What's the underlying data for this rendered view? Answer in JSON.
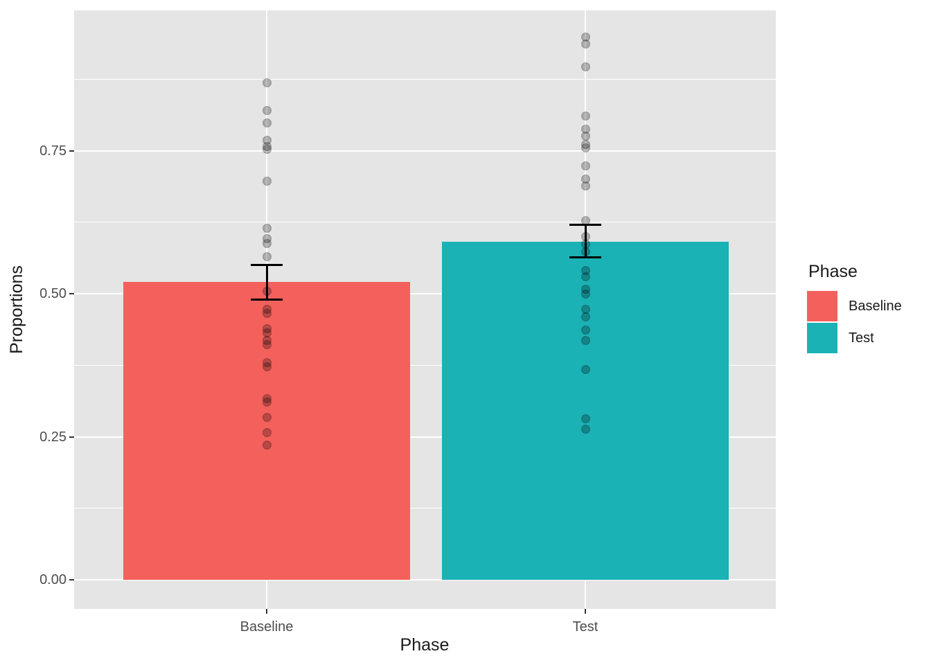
{
  "chart_data": {
    "type": "bar",
    "title": "",
    "xlabel": "Phase",
    "ylabel": "Proportions",
    "categories": [
      "Baseline",
      "Test"
    ],
    "bar_values": [
      0.52,
      0.591
    ],
    "bar_colors": [
      "#F4605C",
      "#1AB2B5"
    ],
    "error_bars": [
      {
        "low": 0.49,
        "high": 0.55
      },
      {
        "low": 0.563,
        "high": 0.621
      }
    ],
    "jitter_points": {
      "Baseline": [
        0.869,
        0.82,
        0.798,
        0.768,
        0.757,
        0.752,
        0.697,
        0.615,
        0.596,
        0.588,
        0.565,
        0.504,
        0.473,
        0.465,
        0.439,
        0.432,
        0.418,
        0.411,
        0.38,
        0.372,
        0.316,
        0.31,
        0.284,
        0.257,
        0.236
      ],
      "Test": [
        0.949,
        0.937,
        0.897,
        0.81,
        0.788,
        0.776,
        0.761,
        0.755,
        0.723,
        0.7,
        0.688,
        0.628,
        0.6,
        0.586,
        0.573,
        0.541,
        0.53,
        0.508,
        0.5,
        0.473,
        0.46,
        0.437,
        0.418,
        0.367,
        0.281,
        0.263
      ]
    },
    "yticks": {
      "values": [
        0.0,
        0.25,
        0.5,
        0.75
      ],
      "labels": [
        "0.00",
        "0.25",
        "0.50",
        "0.75"
      ]
    },
    "minor_gridlines": [
      0.125,
      0.375,
      0.625,
      0.875
    ],
    "ylim": [
      -0.051,
      0.995
    ],
    "grid": true,
    "legend": {
      "title": "Phase",
      "position": "right",
      "items": [
        {
          "label": "Baseline",
          "color": "#F4605C"
        },
        {
          "label": "Test",
          "color": "#1AB2B5"
        }
      ]
    },
    "point_style": {
      "color": "#000000",
      "opacity": 0.25,
      "diameter": 13
    },
    "background": {
      "panel": "#E5E5E5",
      "grid": "#FFFFFF",
      "figure": "#FFFFFF"
    }
  }
}
